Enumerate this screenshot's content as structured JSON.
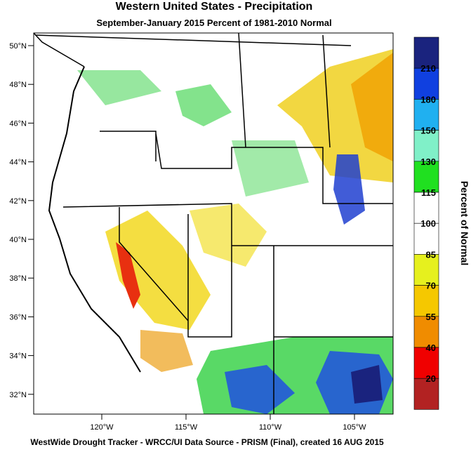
{
  "title": "Western United States - Precipitation",
  "subtitle": "September-January 2015  Percent of 1981-2010 Normal",
  "latitude_labels": [
    "50°N",
    "48°N",
    "46°N",
    "44°N",
    "42°N",
    "40°N",
    "38°N",
    "36°N",
    "34°N",
    "32°N"
  ],
  "longitude_labels": [
    "120°W",
    "115°W",
    "110°W",
    "105°W"
  ],
  "legend": {
    "title": "Percent of Normal",
    "labels": [
      "210",
      "180",
      "150",
      "130",
      "115",
      "100",
      "85",
      "70",
      "55",
      "40",
      "20"
    ]
  },
  "footer": "WestWide Drought Tracker - WRCC/UI  Data Source - PRISM (Final), created 16 AUG 2015"
}
